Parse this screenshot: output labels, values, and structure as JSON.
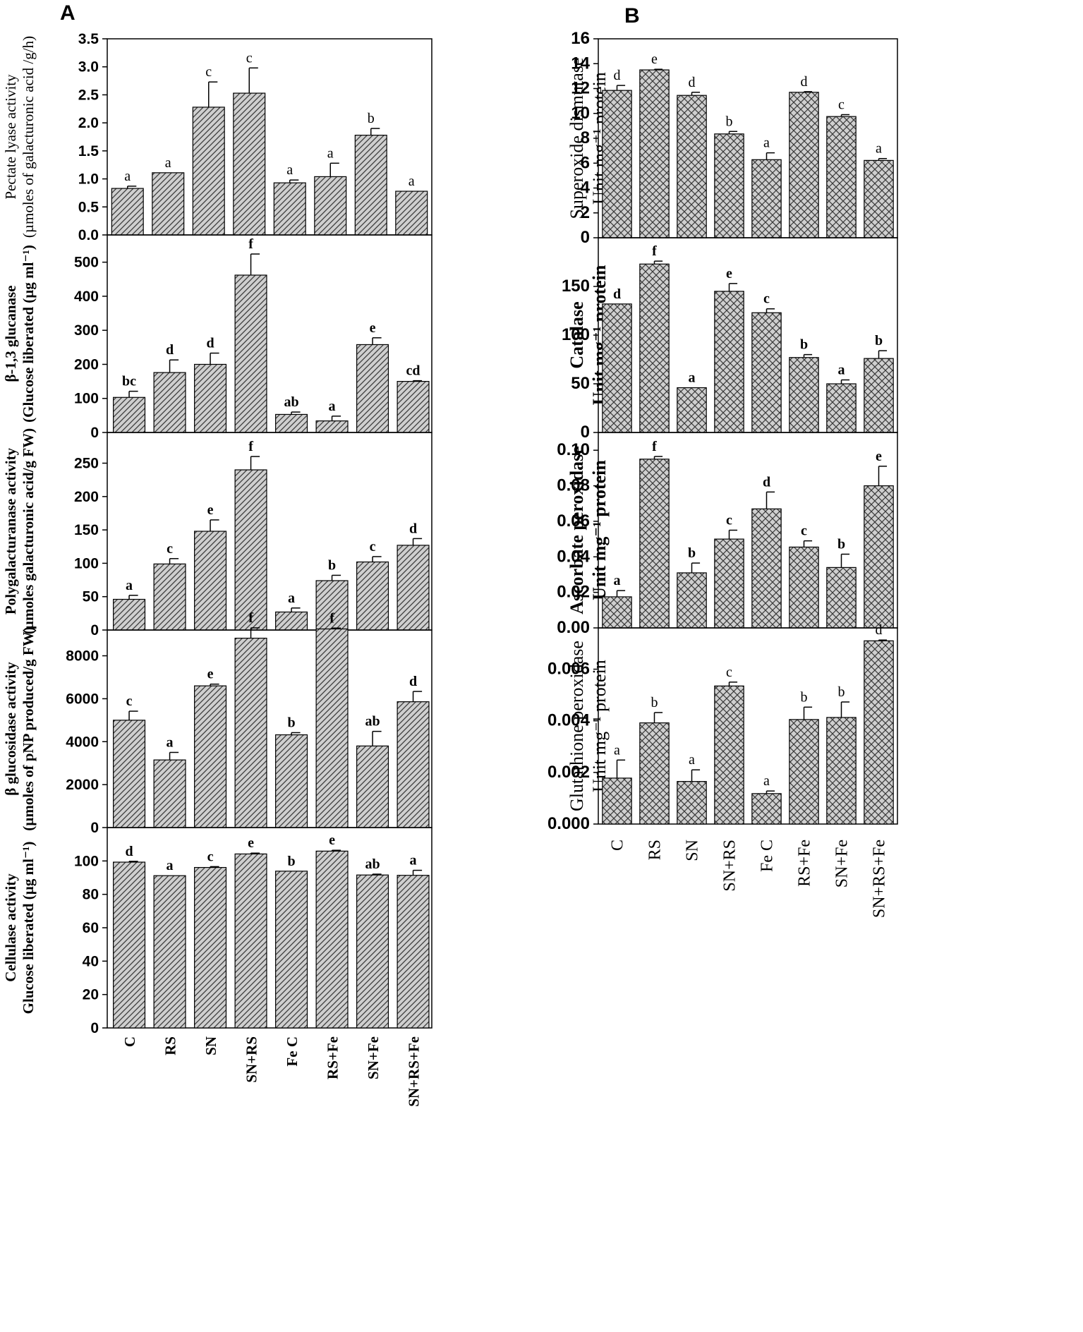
{
  "panels": {
    "a_letter": "A",
    "b_letter": "B"
  },
  "colors": {
    "bar_fill": "#cfcfcf",
    "hatch": "#3a3a3a",
    "axis": "#000000"
  },
  "chart_data": [
    {
      "id": "a1",
      "panel": "A",
      "type": "bar",
      "ylabel_line1": "Pectate lyase activity",
      "ylabel_line2": "(µmoles of galacturonic acid /g/h)",
      "categories": [
        "C",
        "RS",
        "SN",
        "SN+RS",
        "Fe C",
        "RS+Fe",
        "SN+Fe",
        "SN+RS+Fe"
      ],
      "values": [
        0.83,
        1.11,
        2.28,
        2.53,
        0.93,
        1.04,
        1.78,
        0.78
      ],
      "errors": [
        0.04,
        0.0,
        0.45,
        0.45,
        0.05,
        0.24,
        0.12,
        0.0
      ],
      "letters": [
        "a",
        "a",
        "c",
        "c",
        "a",
        "a",
        "b",
        "a"
      ],
      "yticks": [
        "0.0",
        "0.5",
        "1.0",
        "1.5",
        "2.0",
        "2.5",
        "3.0",
        "3.5"
      ],
      "ylim": [
        0,
        3.5
      ]
    },
    {
      "id": "a2",
      "panel": "A",
      "type": "bar",
      "ylabel_line1": "β-1,3 glucanase",
      "ylabel_line2": "(Glucose liberated (µg ml⁻¹)",
      "categories": [
        "C",
        "RS",
        "SN",
        "SN+RS",
        "Fe C",
        "RS+Fe",
        "SN+Fe",
        "SN+RS+Fe"
      ],
      "values": [
        103,
        176,
        200,
        462,
        53,
        34,
        258,
        150
      ],
      "errors": [
        18,
        37,
        33,
        62,
        7,
        14,
        20,
        2
      ],
      "letters": [
        "bc",
        "d",
        "d",
        "f",
        "ab",
        "a",
        "e",
        "cd"
      ],
      "yticks": [
        "0",
        "100",
        "200",
        "300",
        "400",
        "500"
      ],
      "ylim": [
        0,
        580
      ]
    },
    {
      "id": "a3",
      "panel": "A",
      "type": "bar",
      "ylabel_line1": "Polygalacturanase activity",
      "ylabel_line2": "(µmoles galacturonic acid/g FW)",
      "categories": [
        "C",
        "RS",
        "SN",
        "SN+RS",
        "Fe C",
        "RS+Fe",
        "SN+Fe",
        "SN+RS+Fe"
      ],
      "values": [
        46,
        99,
        148,
        240,
        27,
        74,
        102,
        127
      ],
      "errors": [
        6,
        8,
        17,
        20,
        6,
        8,
        8,
        10
      ],
      "letters": [
        "a",
        "c",
        "e",
        "f",
        "a",
        "b",
        "c",
        "d"
      ],
      "yticks": [
        "0",
        "50",
        "100",
        "150",
        "200",
        "250"
      ],
      "ylim": [
        0,
        296
      ]
    },
    {
      "id": "a4",
      "panel": "A",
      "type": "bar",
      "ylabel_line1": "β glucosidase activity",
      "ylabel_line2": "(µmoles of pNP produced/g FW)",
      "categories": [
        "C",
        "RS",
        "SN",
        "SN+RS",
        "Fe C",
        "RS+Fe",
        "SN+Fe",
        "SN+RS+Fe"
      ],
      "values": [
        5000,
        3150,
        6600,
        8820,
        4320,
        9250,
        3800,
        5860
      ],
      "errors": [
        420,
        350,
        80,
        480,
        100,
        40,
        680,
        480
      ],
      "letters": [
        "c",
        "a",
        "e",
        "f",
        "b",
        "f",
        "ab",
        "d"
      ],
      "yticks": [
        "0",
        "2000",
        "4000",
        "6000",
        "8000"
      ],
      "ylim": [
        0,
        9200
      ]
    },
    {
      "id": "a5",
      "panel": "A",
      "type": "bar",
      "ylabel_line1": "Cellulase activity",
      "ylabel_line2": "Glucose liberated (µg ml⁻¹)",
      "categories": [
        "C",
        "RS",
        "SN",
        "SN+RS",
        "Fe C",
        "RS+Fe",
        "SN+Fe",
        "SN+RS+Fe"
      ],
      "values": [
        99.3,
        91.2,
        96.1,
        104.2,
        93.9,
        105.9,
        91.6,
        91.4
      ],
      "errors": [
        0.5,
        0.0,
        0.5,
        0.5,
        0.0,
        0.5,
        0.5,
        3.0
      ],
      "letters": [
        "d",
        "a",
        "c",
        "e",
        "b",
        "e",
        "ab",
        "a"
      ],
      "yticks": [
        "0",
        "20",
        "40",
        "60",
        "80",
        "100"
      ],
      "ylim": [
        0,
        120
      ]
    },
    {
      "id": "b1",
      "panel": "B",
      "type": "bar",
      "ylabel_line1": "Superoxide dismutase",
      "ylabel_line2": "Unit mg⁻¹ protein",
      "categories": [
        "C",
        "RS",
        "SN",
        "SN+RS",
        "Fe C",
        "RS+Fe",
        "SN+Fe",
        "SN+RS+Fe"
      ],
      "values": [
        11.85,
        13.5,
        11.45,
        8.35,
        6.28,
        11.7,
        9.75,
        6.22
      ],
      "errors": [
        0.4,
        0.05,
        0.25,
        0.2,
        0.55,
        0.05,
        0.15,
        0.15
      ],
      "letters": [
        "d",
        "e",
        "d",
        "b",
        "a",
        "d",
        "c",
        "a"
      ],
      "yticks": [
        "0",
        "2",
        "4",
        "6",
        "8",
        "10",
        "12",
        "14",
        "16"
      ],
      "ylim": [
        0,
        16
      ]
    },
    {
      "id": "b2",
      "panel": "B",
      "type": "bar",
      "ylabel_line1": "Catalase",
      "ylabel_line2": "Unit mg⁻¹ protein",
      "categories": [
        "C",
        "RS",
        "SN",
        "SN+RS",
        "Fe C",
        "RS+Fe",
        "SN+Fe",
        "SN+RS+Fe"
      ],
      "values": [
        132,
        173,
        46,
        145,
        123,
        77,
        50,
        76
      ],
      "errors": [
        0,
        3,
        0,
        8,
        4,
        3,
        4,
        8
      ],
      "letters": [
        "d",
        "f",
        "a",
        "e",
        "c",
        "b",
        "a",
        "b"
      ],
      "yticks": [
        "0",
        "50",
        "100",
        "150"
      ],
      "ylim": [
        0,
        200
      ]
    },
    {
      "id": "b3",
      "panel": "B",
      "type": "bar",
      "ylabel_line1": "Ascorbate peroxidase",
      "ylabel_line2": "Unit mg⁻¹ protein",
      "categories": [
        "C",
        "RS",
        "SN",
        "SN+RS",
        "Fe C",
        "RS+Fe",
        "SN+Fe",
        "SN+RS+Fe"
      ],
      "values": [
        0.0175,
        0.095,
        0.031,
        0.05,
        0.067,
        0.0455,
        0.034,
        0.08
      ],
      "errors": [
        0.0035,
        0.0015,
        0.0055,
        0.005,
        0.0095,
        0.0035,
        0.0075,
        0.011
      ],
      "letters": [
        "a",
        "f",
        "b",
        "c",
        "d",
        "c",
        "b",
        "e"
      ],
      "yticks": [
        "0.00",
        "0.02",
        "0.04",
        "0.06",
        "0.08",
        "0.10"
      ],
      "ylim": [
        0,
        0.11
      ]
    },
    {
      "id": "b4",
      "panel": "B",
      "type": "bar",
      "ylabel_line1": "Glutathione peroxidase",
      "ylabel_line2": "Unit mg⁻¹ protein",
      "categories": [
        "C",
        "RS",
        "SN",
        "SN+RS",
        "Fe C",
        "RS+Fe",
        "SN+Fe",
        "SN+RS+Fe"
      ],
      "values": [
        0.00178,
        0.00392,
        0.00165,
        0.00535,
        0.00118,
        0.00405,
        0.00413,
        0.0071
      ],
      "errors": [
        0.0007,
        0.0004,
        0.00045,
        0.00015,
        0.0001,
        0.00048,
        0.0006,
        3e-05
      ],
      "letters": [
        "a",
        "b",
        "a",
        "c",
        "a",
        "b",
        "b",
        "d"
      ],
      "yticks": [
        "0.000",
        "0.002",
        "0.004",
        "0.006"
      ],
      "ylim": [
        0,
        0.0076
      ]
    }
  ]
}
